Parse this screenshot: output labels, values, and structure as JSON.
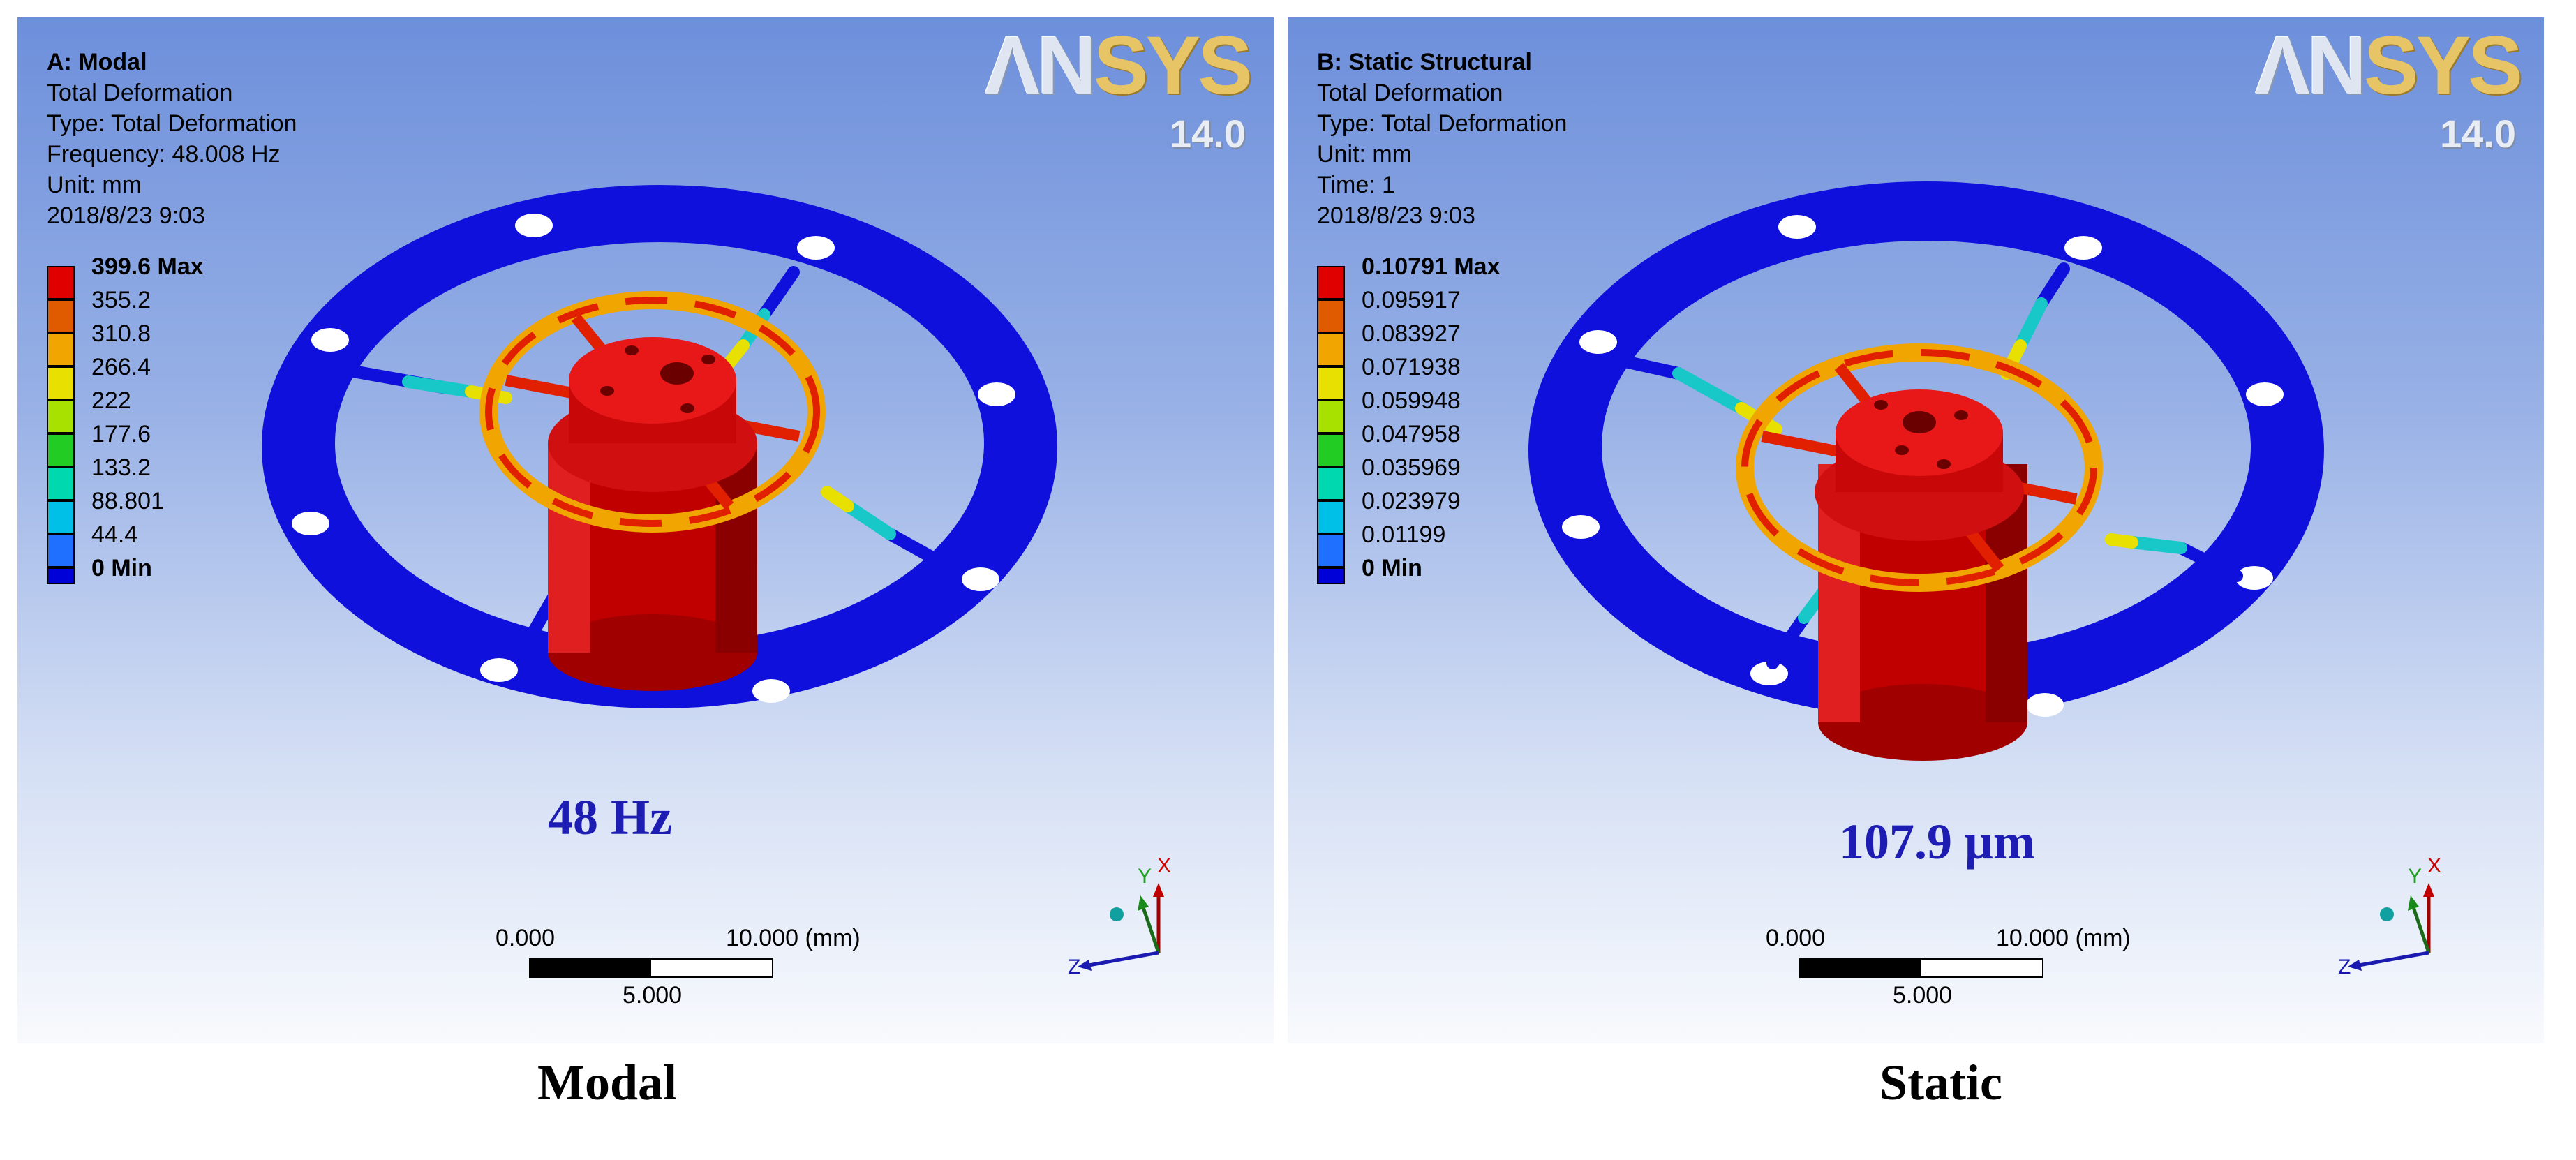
{
  "panels": [
    {
      "header_lines": [
        "A: Modal",
        "Total Deformation",
        "Type: Total Deformation",
        "Frequency: 48.008 Hz",
        "Unit: mm",
        "2018/8/23 9:03"
      ],
      "legend": [
        {
          "label": "399.6 Max",
          "color": "#e00000"
        },
        {
          "label": "355.2",
          "color": "#e05a00"
        },
        {
          "label": "310.8",
          "color": "#f0a500"
        },
        {
          "label": "266.4",
          "color": "#e8e000"
        },
        {
          "label": "222",
          "color": "#a8e000"
        },
        {
          "label": "177.6",
          "color": "#22cc22"
        },
        {
          "label": "133.2",
          "color": "#00d8b0"
        },
        {
          "label": "88.801",
          "color": "#00c0e8"
        },
        {
          "label": "44.4",
          "color": "#2070ff"
        },
        {
          "label": "0 Min",
          "color": "#0000d8"
        }
      ],
      "logo": {
        "brand_a": "ΛN",
        "brand_b": "SYS",
        "version": "14.0"
      },
      "result_label": "48 Hz",
      "scale": {
        "start": "0.000",
        "end": "10.000 (mm)",
        "mid": "5.000"
      },
      "triad": {
        "y": "Y",
        "x": "X",
        "z": "Z"
      },
      "caption": "Modal"
    },
    {
      "header_lines": [
        "B: Static Structural",
        "Total Deformation",
        "Type: Total Deformation",
        "Unit: mm",
        "Time: 1",
        "2018/8/23 9:03"
      ],
      "legend": [
        {
          "label": "0.10791 Max",
          "color": "#e00000"
        },
        {
          "label": "0.095917",
          "color": "#e05a00"
        },
        {
          "label": "0.083927",
          "color": "#f0a500"
        },
        {
          "label": "0.071938",
          "color": "#e8e000"
        },
        {
          "label": "0.059948",
          "color": "#a8e000"
        },
        {
          "label": "0.047958",
          "color": "#22cc22"
        },
        {
          "label": "0.035969",
          "color": "#00d8b0"
        },
        {
          "label": "0.023979",
          "color": "#00c0e8"
        },
        {
          "label": "0.01199",
          "color": "#2070ff"
        },
        {
          "label": "0 Min",
          "color": "#0000d8"
        }
      ],
      "logo": {
        "brand_a": "ΛN",
        "brand_b": "SYS",
        "version": "14.0"
      },
      "result_label": "107.9 μm",
      "scale": {
        "start": "0.000",
        "end": "10.000 (mm)",
        "mid": "5.000"
      },
      "triad": {
        "y": "Y",
        "x": "X",
        "z": "Z"
      },
      "caption": "Static"
    }
  ],
  "colors": {
    "ring": "#1010dc",
    "part": "#d81010",
    "part_dark": "#8a0000",
    "value_text": "#1d1db4"
  }
}
